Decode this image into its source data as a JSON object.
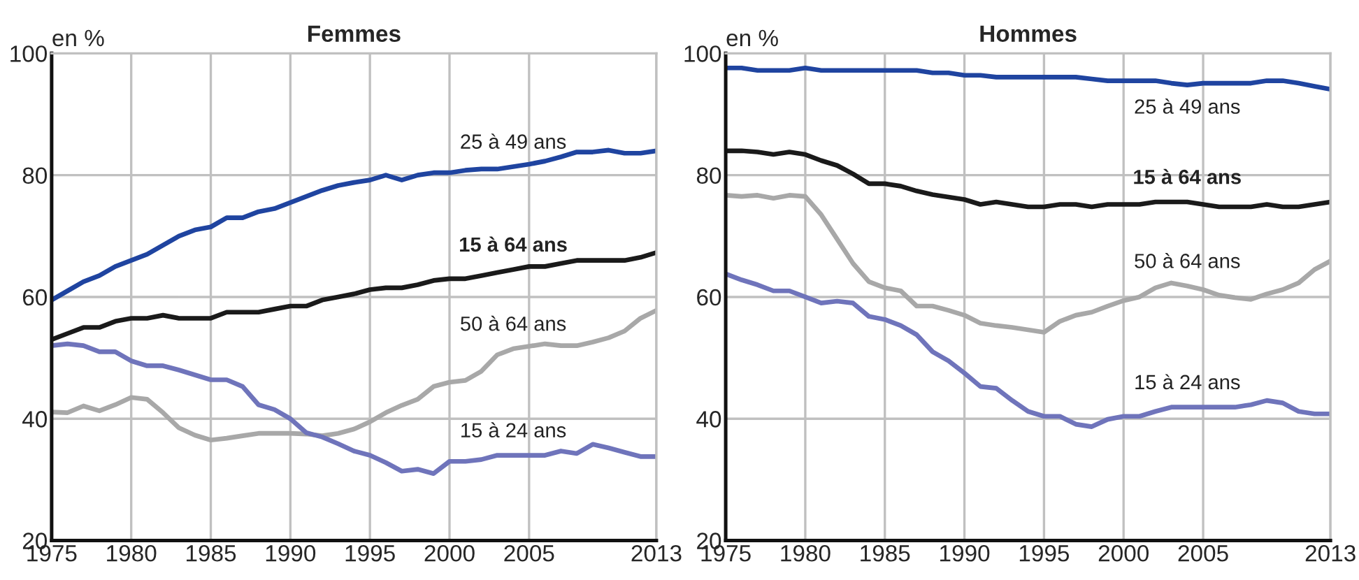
{
  "chart_data": [
    {
      "type": "line",
      "title": "Femmes",
      "ylabel": "en %",
      "xlim": [
        1975,
        2013
      ],
      "xticks": [
        1975,
        1980,
        1985,
        1990,
        1995,
        2000,
        2005,
        2013
      ],
      "ylim": [
        20,
        100
      ],
      "yticks": [
        20,
        40,
        60,
        80,
        100
      ],
      "grid": true,
      "legend": false,
      "x": [
        1975,
        1976,
        1977,
        1978,
        1979,
        1980,
        1981,
        1982,
        1983,
        1984,
        1985,
        1986,
        1987,
        1988,
        1989,
        1990,
        1991,
        1992,
        1993,
        1994,
        1995,
        1996,
        1997,
        1998,
        1999,
        2000,
        2001,
        2002,
        2003,
        2004,
        2005,
        2006,
        2007,
        2008,
        2009,
        2010,
        2011,
        2012,
        2013
      ],
      "series": [
        {
          "name": "25 à 49 ans",
          "color": "#1f44a0",
          "values": [
            59.5,
            61,
            62.5,
            63.5,
            65,
            66,
            67,
            68.5,
            70,
            71,
            71.5,
            73,
            73,
            74,
            74.5,
            75.5,
            76.5,
            77.5,
            78.3,
            78.8,
            79.2,
            80,
            79.2,
            80,
            80.4,
            80.4,
            80.8,
            81,
            81,
            81.4,
            81.8,
            82.3,
            83,
            83.8,
            83.8,
            84.1,
            83.6,
            83.6,
            84
          ]
        },
        {
          "name": "15 à 64 ans",
          "color": "#1a1a1a",
          "values": [
            53,
            54,
            55,
            55,
            56,
            56.5,
            56.5,
            57,
            56.5,
            56.5,
            56.5,
            57.5,
            57.5,
            57.5,
            58,
            58.5,
            58.5,
            59.5,
            60,
            60.5,
            61.2,
            61.5,
            61.5,
            62,
            62.7,
            63,
            63,
            63.5,
            64,
            64.5,
            65,
            65,
            65.5,
            66,
            66,
            66,
            66,
            66.5,
            67.3
          ]
        },
        {
          "name": "50 à 64 ans",
          "color": "#a8a8a8",
          "values": [
            41.1,
            41,
            42.1,
            41.3,
            42.3,
            43.5,
            43.2,
            41,
            38.5,
            37.3,
            36.5,
            36.8,
            37.2,
            37.6,
            37.6,
            37.6,
            37.5,
            37.2,
            37.6,
            38.3,
            39.5,
            41,
            42.2,
            43.2,
            45.3,
            46,
            46.3,
            47.8,
            50.5,
            51.5,
            51.9,
            52.3,
            52,
            52,
            52.6,
            53.3,
            54.4,
            56.5,
            57.8
          ]
        },
        {
          "name": "15 à 24 ans",
          "color": "#6f74bb",
          "values": [
            52,
            52.3,
            52,
            51,
            51,
            49.5,
            48.7,
            48.7,
            48,
            47.2,
            46.4,
            46.4,
            45.3,
            42.3,
            41.5,
            40,
            37.7,
            37,
            35.9,
            34.7,
            34,
            32.8,
            31.4,
            31.7,
            31,
            33,
            33,
            33.3,
            34,
            34,
            34,
            34,
            34.7,
            34.3,
            35.8,
            35.2,
            34.5,
            33.8,
            33.8
          ]
        }
      ]
    },
    {
      "type": "line",
      "title": "Hommes",
      "ylabel": "en %",
      "xlim": [
        1975,
        2013
      ],
      "xticks": [
        1975,
        1980,
        1985,
        1990,
        1995,
        2000,
        2005,
        2013
      ],
      "ylim": [
        20,
        100
      ],
      "yticks": [
        20,
        40,
        60,
        80,
        100
      ],
      "grid": true,
      "legend": false,
      "x": [
        1975,
        1976,
        1977,
        1978,
        1979,
        1980,
        1981,
        1982,
        1983,
        1984,
        1985,
        1986,
        1987,
        1988,
        1989,
        1990,
        1991,
        1992,
        1993,
        1994,
        1995,
        1996,
        1997,
        1998,
        1999,
        2000,
        2001,
        2002,
        2003,
        2004,
        2005,
        2006,
        2007,
        2008,
        2009,
        2010,
        2011,
        2012,
        2013
      ],
      "series": [
        {
          "name": "25 à 49 ans",
          "color": "#1f44a0",
          "values": [
            97.6,
            97.6,
            97.2,
            97.2,
            97.2,
            97.6,
            97.2,
            97.2,
            97.2,
            97.2,
            97.2,
            97.2,
            97.2,
            96.8,
            96.8,
            96.4,
            96.4,
            96.1,
            96.1,
            96.1,
            96.1,
            96.1,
            96.1,
            95.8,
            95.5,
            95.5,
            95.5,
            95.5,
            95.1,
            94.8,
            95.1,
            95.1,
            95.1,
            95.1,
            95.5,
            95.5,
            95.1,
            94.6,
            94.1
          ]
        },
        {
          "name": "15 à 64 ans",
          "color": "#1a1a1a",
          "values": [
            84,
            84,
            83.8,
            83.4,
            83.8,
            83.4,
            82.4,
            81.6,
            80.2,
            78.6,
            78.6,
            78.2,
            77.4,
            76.8,
            76.4,
            76,
            75.2,
            75.6,
            75.2,
            74.8,
            74.8,
            75.2,
            75.2,
            74.8,
            75.2,
            75.2,
            75.2,
            75.6,
            75.6,
            75.6,
            75.2,
            74.8,
            74.8,
            74.8,
            75.2,
            74.8,
            74.8,
            75.2,
            75.6
          ]
        },
        {
          "name": "50 à 64 ans",
          "color": "#a8a8a8",
          "values": [
            76.7,
            76.5,
            76.7,
            76.2,
            76.7,
            76.5,
            73.5,
            69.5,
            65.5,
            62.5,
            61.5,
            61,
            58.5,
            58.5,
            57.8,
            57,
            55.7,
            55.3,
            55,
            54.6,
            54.2,
            56,
            57,
            57.5,
            58.5,
            59.4,
            60,
            61.5,
            62.3,
            61.8,
            61.2,
            60.3,
            59.9,
            59.6,
            60.5,
            61.2,
            62.3,
            64.5,
            65.9
          ]
        },
        {
          "name": "15 à 24 ans",
          "color": "#6f74bb",
          "values": [
            63.8,
            62.8,
            62,
            61,
            61,
            60,
            59,
            59.3,
            59,
            56.8,
            56.3,
            55.3,
            53.8,
            51,
            49.5,
            47.5,
            45.3,
            45,
            43,
            41.2,
            40.4,
            40.4,
            39.1,
            38.7,
            39.9,
            40.4,
            40.4,
            41.2,
            41.9,
            41.9,
            41.9,
            41.9,
            41.9,
            42.3,
            43,
            42.6,
            41.2,
            40.8,
            40.8
          ]
        }
      ]
    }
  ]
}
